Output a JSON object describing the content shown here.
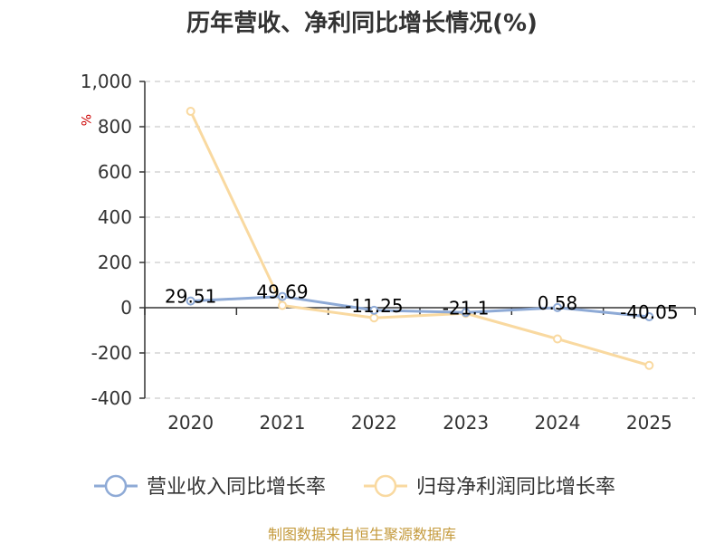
{
  "chart_data": {
    "type": "line",
    "title": "历年营收、净利同比增长情况(%)",
    "ylabel": "%",
    "categories": [
      "2020",
      "2021",
      "2022",
      "2023",
      "2024",
      "2025"
    ],
    "ylim": [
      -400,
      1000
    ],
    "yticks": [
      1000,
      800,
      600,
      400,
      200,
      0,
      -200,
      -400
    ],
    "ytick_labels": [
      "1,000",
      "800",
      "600",
      "400",
      "200",
      "0",
      "-200",
      "-400"
    ],
    "grid": true,
    "legend_position": "bottom",
    "series": [
      {
        "name": "营业收入同比增长率",
        "values": [
          29.51,
          49.69,
          -11.25,
          -21.1,
          0.58,
          -40.05
        ],
        "labels": [
          "29.51",
          "49.69",
          "-11.25",
          "-21.1",
          "0.58",
          "-40.05"
        ],
        "color": "#8eaad6"
      },
      {
        "name": "归母净利润同比增长率",
        "values": [
          868,
          10,
          -45,
          -25,
          -138,
          -255
        ],
        "color": "#f9d9a0"
      }
    ]
  },
  "source": "制图数据来自恒生聚源数据库"
}
